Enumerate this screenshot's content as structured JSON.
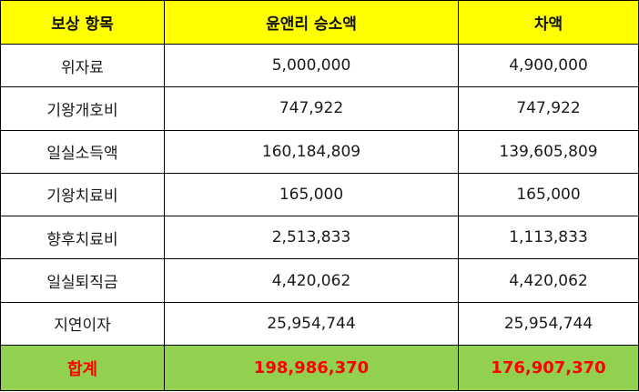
{
  "header": {
    "col1": "보상 항목",
    "col2": "윤앤리 승소액",
    "col3": "차액"
  },
  "rows": [
    {
      "item": "위자료",
      "won": "5,000,000",
      "diff": "4,900,000"
    },
    {
      "item": "기왕개호비",
      "won": "747,922",
      "diff": "747,922"
    },
    {
      "item": "일실소득액",
      "won": "160,184,809",
      "diff": "139,605,809"
    },
    {
      "item": "기왕치료비",
      "won": "165,000",
      "diff": "165,000"
    },
    {
      "item": "향후치료비",
      "won": "2,513,833",
      "diff": "1,113,833"
    },
    {
      "item": "일실퇴직금",
      "won": "4,420,062",
      "diff": "4,420,062"
    },
    {
      "item": "지연이자",
      "won": "25,954,744",
      "diff": "25,954,744"
    }
  ],
  "total": {
    "label": "합계",
    "won": "198,986,370",
    "diff": "176,907,370"
  },
  "colors": {
    "header_bg": "#ffff00",
    "total_bg": "#92d050",
    "total_text": "#ff0000"
  }
}
